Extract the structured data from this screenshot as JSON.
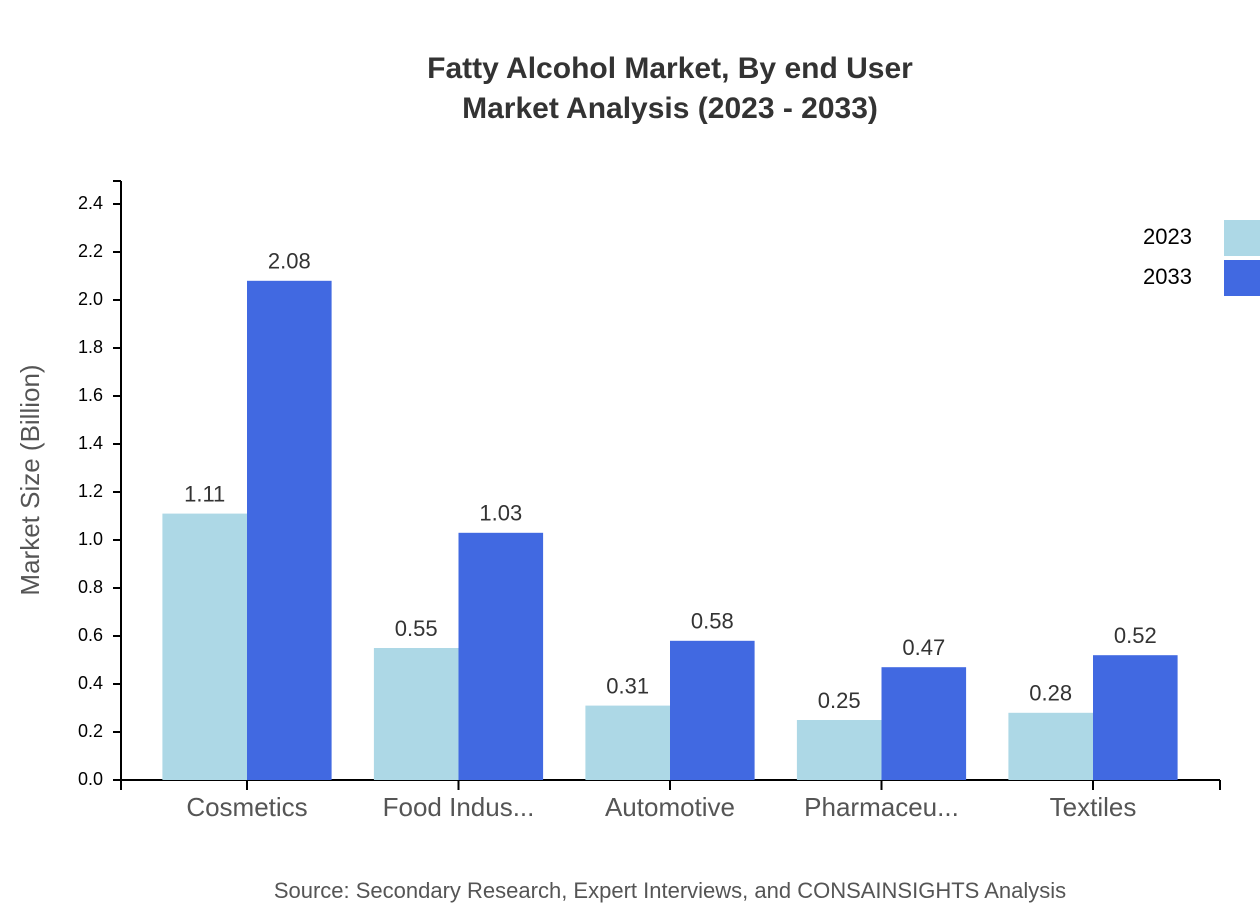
{
  "chart_data": {
    "type": "bar",
    "title": "Fatty Alcohol Market, By end User",
    "subtitle": "Market Analysis (2023 - 2033)",
    "y_label": "Market Size (Billion)",
    "source": "Source: Secondary Research, Expert Interviews, and CONSAINSIGHTS Analysis",
    "categories": [
      "Cosmetics",
      "Food Indus...",
      "Automotive",
      "Pharmaceu...",
      "Textiles"
    ],
    "series": [
      {
        "name": "2023",
        "color": "#add8e6",
        "values": [
          1.11,
          0.55,
          0.31,
          0.25,
          0.28
        ]
      },
      {
        "name": "2033",
        "color": "#4169e1",
        "values": [
          2.08,
          1.03,
          0.58,
          0.47,
          0.52
        ]
      }
    ],
    "ylim": [
      0,
      2.5
    ],
    "yticks": [
      {
        "value": 0,
        "label": "0.0"
      },
      0.2,
      0.4,
      0.6,
      0.8,
      {
        "value": 1,
        "label": "1.0"
      },
      1.2,
      1.4,
      1.6,
      1.8,
      {
        "value": 2,
        "label": "2.0"
      },
      2.2,
      2.4
    ],
    "legend": "top-right"
  }
}
